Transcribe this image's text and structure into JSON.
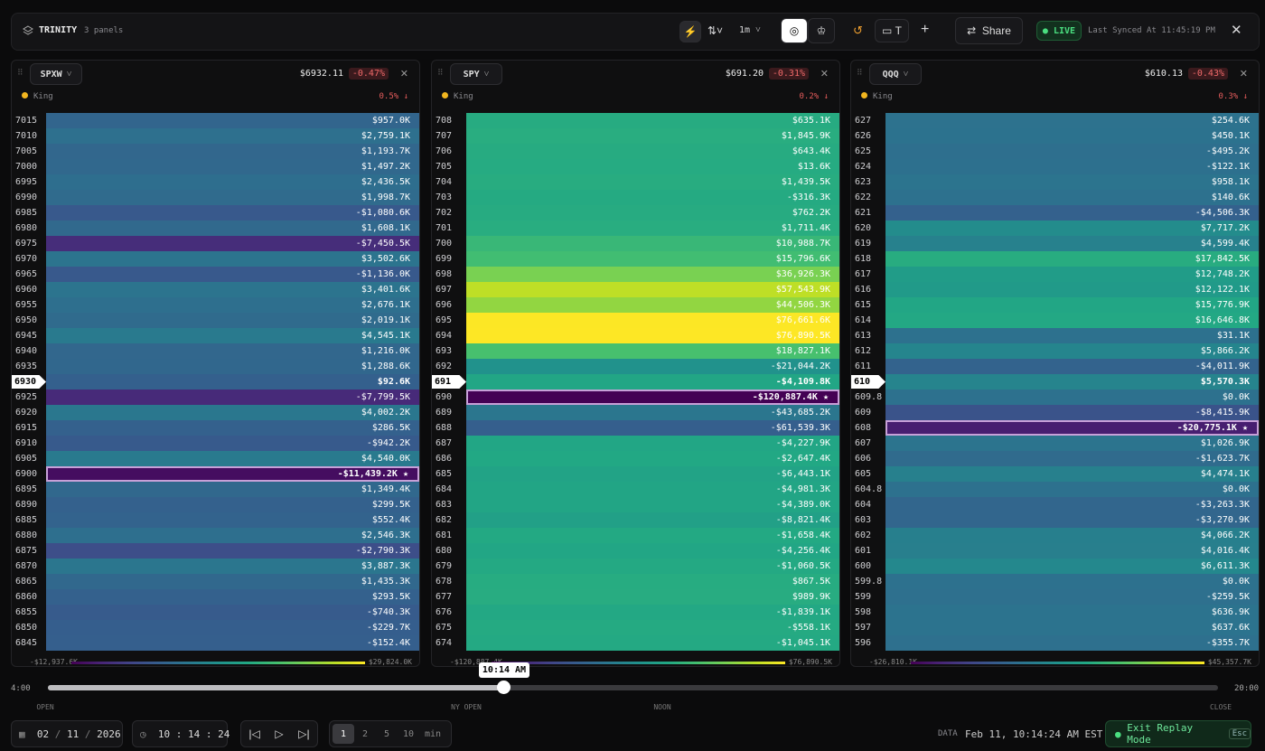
{
  "topbar": {
    "app": "TRINITY",
    "panels": "3 panels",
    "interval": "1m",
    "layout_label": "T",
    "share": "Share",
    "live": "LIVE",
    "synced": "Last Synced At 11:45:19 PM"
  },
  "panels": [
    {
      "symbol": "SPXW",
      "price": "$6932.11",
      "change": "-0.47%",
      "indicator": "King",
      "indicator_value": "0.5% ↓",
      "scale_min": "-$12,937.6K",
      "scale_max": "$29,824.0K",
      "rows": [
        {
          "strike": "7015",
          "value": "$957.0K"
        },
        {
          "strike": "7010",
          "value": "$2,759.1K"
        },
        {
          "strike": "7005",
          "value": "$1,193.7K"
        },
        {
          "strike": "7000",
          "value": "$1,497.2K"
        },
        {
          "strike": "6995",
          "value": "$2,436.5K"
        },
        {
          "strike": "6990",
          "value": "$1,998.7K"
        },
        {
          "strike": "6985",
          "value": "-$1,080.6K"
        },
        {
          "strike": "6980",
          "value": "$1,608.1K"
        },
        {
          "strike": "6975",
          "value": "-$7,450.5K"
        },
        {
          "strike": "6970",
          "value": "$3,502.6K"
        },
        {
          "strike": "6965",
          "value": "-$1,136.0K"
        },
        {
          "strike": "6960",
          "value": "$3,401.6K"
        },
        {
          "strike": "6955",
          "value": "$2,676.1K"
        },
        {
          "strike": "6950",
          "value": "$2,019.1K"
        },
        {
          "strike": "6945",
          "value": "$4,545.1K"
        },
        {
          "strike": "6940",
          "value": "$1,216.0K"
        },
        {
          "strike": "6935",
          "value": "$1,288.6K"
        },
        {
          "strike": "6930",
          "value": "$92.6K",
          "current": true
        },
        {
          "strike": "6925",
          "value": "-$7,799.5K"
        },
        {
          "strike": "6920",
          "value": "$4,002.2K"
        },
        {
          "strike": "6915",
          "value": "$286.5K"
        },
        {
          "strike": "6910",
          "value": "-$942.2K"
        },
        {
          "strike": "6905",
          "value": "$4,540.0K"
        },
        {
          "strike": "6900",
          "value": "-$11,439.2K ★"
        },
        {
          "strike": "6895",
          "value": "$1,349.4K"
        },
        {
          "strike": "6890",
          "value": "$299.5K"
        },
        {
          "strike": "6885",
          "value": "$552.4K"
        },
        {
          "strike": "6880",
          "value": "$2,546.3K"
        },
        {
          "strike": "6875",
          "value": "-$2,790.3K"
        },
        {
          "strike": "6870",
          "value": "$3,887.3K"
        },
        {
          "strike": "6865",
          "value": "$1,435.3K"
        },
        {
          "strike": "6860",
          "value": "$293.5K"
        },
        {
          "strike": "6855",
          "value": "-$740.3K"
        },
        {
          "strike": "6850",
          "value": "-$229.7K"
        },
        {
          "strike": "6845",
          "value": "-$152.4K"
        }
      ]
    },
    {
      "symbol": "SPY",
      "price": "$691.20",
      "change": "-0.31%",
      "indicator": "King",
      "indicator_value": "0.2% ↓",
      "scale_min": "-$120,887.4K",
      "scale_max": "$76,890.5K",
      "rows": [
        {
          "strike": "708",
          "value": "$635.1K"
        },
        {
          "strike": "707",
          "value": "$1,845.9K"
        },
        {
          "strike": "706",
          "value": "$643.4K"
        },
        {
          "strike": "705",
          "value": "$13.6K"
        },
        {
          "strike": "704",
          "value": "$1,439.5K"
        },
        {
          "strike": "703",
          "value": "-$316.3K"
        },
        {
          "strike": "702",
          "value": "$762.2K"
        },
        {
          "strike": "701",
          "value": "$1,711.4K"
        },
        {
          "strike": "700",
          "value": "$10,988.7K"
        },
        {
          "strike": "699",
          "value": "$15,796.6K"
        },
        {
          "strike": "698",
          "value": "$36,926.3K"
        },
        {
          "strike": "697",
          "value": "$57,543.9K"
        },
        {
          "strike": "696",
          "value": "$44,506.3K"
        },
        {
          "strike": "695",
          "value": "$76,661.6K"
        },
        {
          "strike": "694",
          "value": "$76,890.5K"
        },
        {
          "strike": "693",
          "value": "$18,827.1K"
        },
        {
          "strike": "692",
          "value": "-$21,044.2K"
        },
        {
          "strike": "691",
          "value": "-$4,109.8K",
          "current": true
        },
        {
          "strike": "690",
          "value": "-$120,887.4K ★"
        },
        {
          "strike": "689",
          "value": "-$43,685.2K"
        },
        {
          "strike": "688",
          "value": "-$61,539.3K"
        },
        {
          "strike": "687",
          "value": "-$4,227.9K"
        },
        {
          "strike": "686",
          "value": "-$2,647.4K"
        },
        {
          "strike": "685",
          "value": "-$6,443.1K"
        },
        {
          "strike": "684",
          "value": "-$4,981.3K"
        },
        {
          "strike": "683",
          "value": "-$4,389.0K"
        },
        {
          "strike": "682",
          "value": "-$8,821.4K"
        },
        {
          "strike": "681",
          "value": "-$1,658.4K"
        },
        {
          "strike": "680",
          "value": "-$4,256.4K"
        },
        {
          "strike": "679",
          "value": "-$1,060.5K"
        },
        {
          "strike": "678",
          "value": "$867.5K"
        },
        {
          "strike": "677",
          "value": "$989.9K"
        },
        {
          "strike": "676",
          "value": "-$1,839.1K"
        },
        {
          "strike": "675",
          "value": "-$558.1K"
        },
        {
          "strike": "674",
          "value": "-$1,045.1K"
        }
      ]
    },
    {
      "symbol": "QQQ",
      "price": "$610.13",
      "change": "-0.43%",
      "indicator": "King",
      "indicator_value": "0.3% ↓",
      "scale_min": "-$26,810.1K",
      "scale_max": "$45,357.7K",
      "rows": [
        {
          "strike": "627",
          "value": "$254.6K"
        },
        {
          "strike": "626",
          "value": "$450.1K"
        },
        {
          "strike": "625",
          "value": "-$495.2K"
        },
        {
          "strike": "624",
          "value": "-$122.1K"
        },
        {
          "strike": "623",
          "value": "$958.1K"
        },
        {
          "strike": "622",
          "value": "$140.6K"
        },
        {
          "strike": "621",
          "value": "-$4,506.3K"
        },
        {
          "strike": "620",
          "value": "$7,717.2K"
        },
        {
          "strike": "619",
          "value": "$4,599.4K"
        },
        {
          "strike": "618",
          "value": "$17,842.5K"
        },
        {
          "strike": "617",
          "value": "$12,748.2K"
        },
        {
          "strike": "616",
          "value": "$12,122.1K"
        },
        {
          "strike": "615",
          "value": "$15,776.9K"
        },
        {
          "strike": "614",
          "value": "$16,646.8K"
        },
        {
          "strike": "613",
          "value": "$31.1K"
        },
        {
          "strike": "612",
          "value": "$5,866.2K"
        },
        {
          "strike": "611",
          "value": "-$4,011.9K"
        },
        {
          "strike": "610",
          "value": "$5,570.3K",
          "current": true
        },
        {
          "strike": "609.8",
          "value": "$0.0K"
        },
        {
          "strike": "609",
          "value": "-$8,415.9K"
        },
        {
          "strike": "608",
          "value": "-$20,775.1K ★"
        },
        {
          "strike": "607",
          "value": "$1,026.9K"
        },
        {
          "strike": "606",
          "value": "-$1,623.7K"
        },
        {
          "strike": "605",
          "value": "$4,474.1K"
        },
        {
          "strike": "604.8",
          "value": "$0.0K"
        },
        {
          "strike": "604",
          "value": "-$3,263.3K"
        },
        {
          "strike": "603",
          "value": "-$3,270.9K"
        },
        {
          "strike": "602",
          "value": "$4,066.2K"
        },
        {
          "strike": "601",
          "value": "$4,016.4K"
        },
        {
          "strike": "600",
          "value": "$6,611.3K"
        },
        {
          "strike": "599.8",
          "value": "$0.0K"
        },
        {
          "strike": "599",
          "value": "-$259.5K"
        },
        {
          "strike": "598",
          "value": "$636.9K"
        },
        {
          "strike": "597",
          "value": "$637.6K"
        },
        {
          "strike": "596",
          "value": "-$355.7K"
        }
      ]
    }
  ],
  "timeline": {
    "start": "4:00",
    "end": "20:00",
    "current": "10:14 AM",
    "markers": [
      "OPEN",
      "NY OPEN",
      "NOON",
      "CLOSE"
    ]
  },
  "footer": {
    "month": "02",
    "day": "11",
    "year": "2026",
    "hour": "10",
    "minute": "14",
    "second": "24",
    "speeds": [
      "1",
      "2",
      "5",
      "10"
    ],
    "speed_unit": "min",
    "data_label": "DATA",
    "data_time": "Feb 11, 10:14:24 AM EST",
    "exit": "Exit Replay Mode",
    "exit_key": "Esc"
  }
}
